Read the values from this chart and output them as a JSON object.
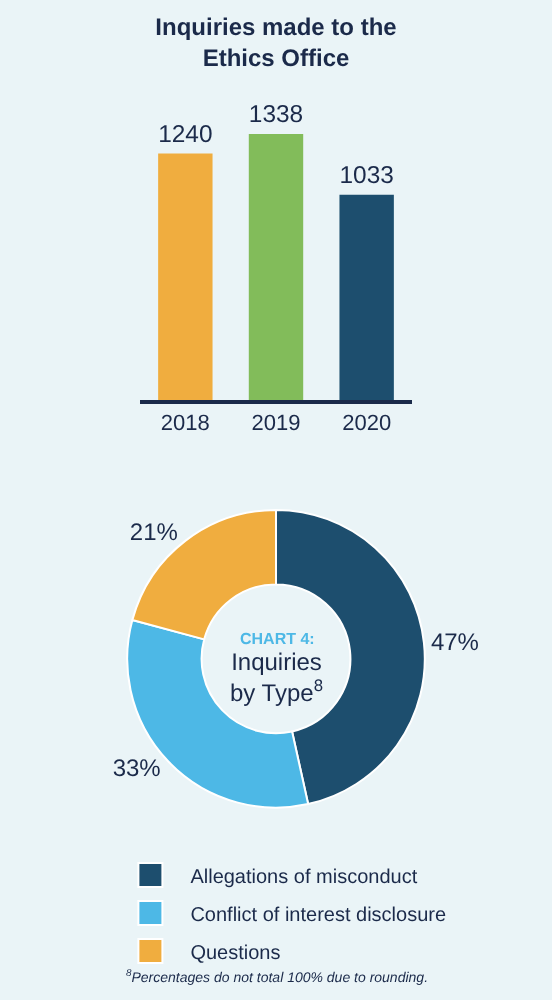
{
  "chart_data": [
    {
      "type": "bar",
      "title": "Inquiries made to the Ethics Office",
      "categories": [
        "2018",
        "2019",
        "2020"
      ],
      "values": [
        1240,
        1338,
        1033
      ],
      "colors": [
        "#f0ad3f",
        "#82bc5a",
        "#1d4e6e"
      ],
      "data_labels": true,
      "tick_labels": "x",
      "grid": false,
      "legend": false
    },
    {
      "type": "donut",
      "subtitle": "CHART 4:",
      "title": "Inquiries by Type$^{8}$",
      "categories": [
        "Allegations of misconduct",
        "Conflict of interest disclosure",
        "Questions"
      ],
      "values": [
        47,
        33,
        21
      ],
      "value_labels": [
        "47%",
        "33%",
        "21%"
      ],
      "colors": [
        "#1d4e6e",
        "#4db8e6",
        "#f0ad3f"
      ],
      "legend": "bottom",
      "annotations": [
        "$^{8}$Percentages do not total 100% due to rounding."
      ]
    }
  ]
}
